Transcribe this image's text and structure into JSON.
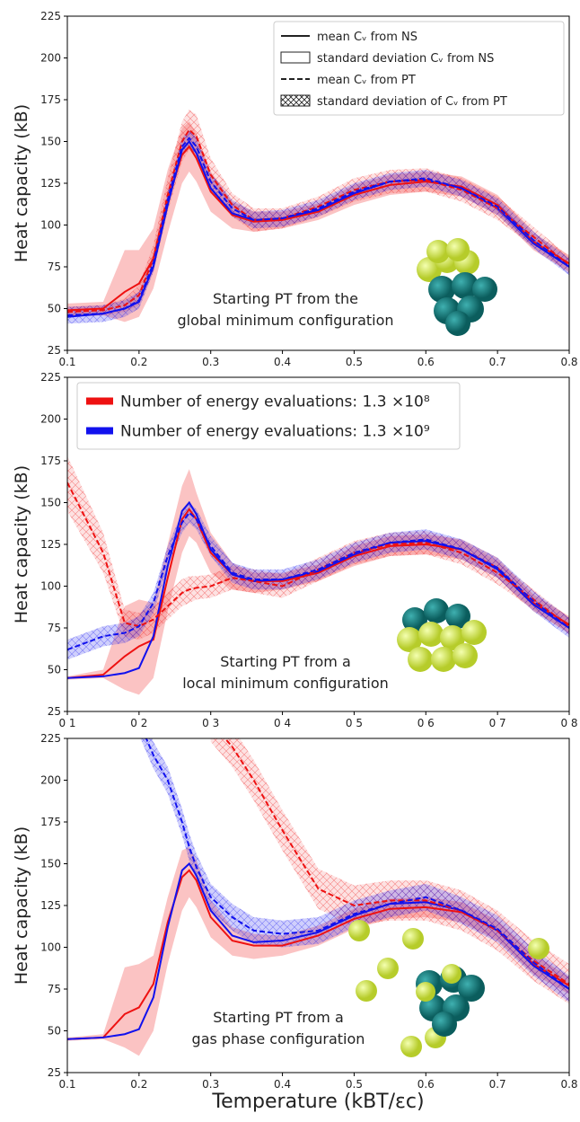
{
  "chart_data": [
    {
      "type": "line",
      "ylabel": "Heat capacity (kB)",
      "x": [
        0.1,
        0.15,
        0.18,
        0.2,
        0.22,
        0.24,
        0.26,
        0.27,
        0.28,
        0.3,
        0.33,
        0.36,
        0.4,
        0.45,
        0.5,
        0.55,
        0.6,
        0.65,
        0.7,
        0.75,
        0.8
      ],
      "xlim": [
        0.1,
        0.8
      ],
      "xticks": [
        0.1,
        0.2,
        0.3,
        0.4,
        0.5,
        0.6,
        0.7,
        0.8
      ],
      "ylim": [
        25,
        225
      ],
      "yticks": [
        25,
        50,
        75,
        100,
        125,
        150,
        175,
        200,
        225
      ],
      "legend": [
        {
          "label": "mean Cᵥ from NS",
          "style": "solid-line"
        },
        {
          "label": "standard deviation Cᵥ from NS",
          "style": "box"
        },
        {
          "label": "mean Cᵥ from PT",
          "style": "dashed-line"
        },
        {
          "label": "standard deviation of Cᵥ from PT",
          "style": "hatch-box"
        }
      ],
      "annotation": [
        "Starting PT from the",
        "global minimum configuration"
      ],
      "series": [
        {
          "color": "#ee1111",
          "style": "solid",
          "band_style": "fill",
          "values": [
            49,
            50,
            60,
            65,
            80,
            115,
            142,
            147,
            140,
            120,
            106,
            102,
            103,
            108,
            118,
            124,
            126,
            123,
            112,
            90,
            77
          ],
          "band_lower": [
            45,
            46,
            42,
            45,
            62,
            95,
            125,
            132,
            126,
            108,
            98,
            96,
            98,
            103,
            112,
            118,
            120,
            117,
            106,
            85,
            72
          ],
          "band_upper": [
            53,
            54,
            85,
            85,
            98,
            133,
            158,
            162,
            155,
            132,
            114,
            108,
            108,
            113,
            124,
            130,
            132,
            129,
            118,
            95,
            82
          ]
        },
        {
          "color": "#1111ee",
          "style": "solid",
          "values": [
            45,
            47,
            50,
            54,
            75,
            112,
            145,
            150,
            143,
            122,
            107,
            103,
            104,
            109,
            119,
            126,
            127,
            122,
            110,
            89,
            75
          ]
        },
        {
          "color": "#ee1111",
          "style": "dashed",
          "band_style": "hatch",
          "values": [
            48,
            49,
            52,
            58,
            80,
            118,
            150,
            157,
            153,
            130,
            112,
            103,
            104,
            111,
            121,
            126,
            127,
            121,
            110,
            93,
            76
          ],
          "band_lower": [
            45,
            46,
            48,
            52,
            72,
            108,
            138,
            145,
            140,
            120,
            105,
            96,
            98,
            105,
            114,
            119,
            120,
            114,
            103,
            87,
            71
          ],
          "band_upper": [
            51,
            52,
            56,
            64,
            88,
            128,
            162,
            169,
            166,
            140,
            119,
            110,
            110,
            117,
            128,
            133,
            134,
            128,
            117,
            99,
            81
          ]
        },
        {
          "color": "#1111ee",
          "style": "dashed",
          "band_style": "hatch",
          "values": [
            46,
            47,
            50,
            55,
            77,
            115,
            147,
            152,
            147,
            126,
            110,
            103,
            104,
            110,
            120,
            126,
            128,
            122,
            111,
            91,
            75
          ],
          "band_lower": [
            41,
            42,
            45,
            50,
            72,
            110,
            142,
            147,
            142,
            121,
            105,
            98,
            99,
            105,
            115,
            121,
            123,
            117,
            106,
            86,
            70
          ],
          "band_upper": [
            51,
            52,
            55,
            60,
            82,
            120,
            152,
            157,
            152,
            131,
            115,
            108,
            109,
            115,
            125,
            131,
            133,
            127,
            116,
            96,
            80
          ]
        }
      ]
    },
    {
      "type": "line",
      "ylabel": "Heat capacity (kB)",
      "x": [
        0.1,
        0.15,
        0.18,
        0.2,
        0.22,
        0.24,
        0.26,
        0.27,
        0.28,
        0.3,
        0.33,
        0.36,
        0.4,
        0.45,
        0.5,
        0.55,
        0.6,
        0.65,
        0.7,
        0.75,
        0.8
      ],
      "xlim": [
        0.1,
        0.8
      ],
      "xticks": [
        {
          "value": 0.1,
          "label": "0 1"
        },
        {
          "value": 0.2,
          "label": "0 2"
        },
        {
          "value": 0.3,
          "label": "0 3"
        },
        {
          "value": 0.4,
          "label": "0 4"
        },
        {
          "value": 0.5,
          "label": "0 5"
        },
        {
          "value": 0.6,
          "label": "0 6"
        },
        {
          "value": 0.7,
          "label": "0 7"
        },
        {
          "value": 0.8,
          "label": "0 8"
        }
      ],
      "ylim": [
        25,
        225
      ],
      "yticks": [
        25,
        50,
        75,
        100,
        125,
        150,
        175,
        200,
        225
      ],
      "legend": [
        {
          "label": "Number of energy evaluations: 1.3 ×10⁸",
          "color": "#ee1111"
        },
        {
          "label": "Number of energy evaluations: 1.3 ×10⁹",
          "color": "#1111ee"
        }
      ],
      "annotation": [
        "Starting PT from a",
        "local minimum configuration"
      ],
      "series": [
        {
          "color": "#ee1111",
          "style": "solid",
          "band_style": "fill",
          "values": [
            45,
            47,
            58,
            64,
            68,
            105,
            140,
            146,
            140,
            120,
            107,
            103,
            103,
            108,
            118,
            124,
            125,
            122,
            111,
            90,
            77
          ],
          "band_lower": [
            44,
            45,
            38,
            35,
            45,
            85,
            120,
            130,
            126,
            108,
            98,
            96,
            98,
            103,
            112,
            118,
            119,
            116,
            105,
            85,
            72
          ],
          "band_upper": [
            46,
            50,
            88,
            92,
            90,
            125,
            160,
            170,
            156,
            132,
            114,
            108,
            108,
            113,
            124,
            130,
            131,
            128,
            117,
            95,
            82
          ]
        },
        {
          "color": "#1111ee",
          "style": "solid",
          "values": [
            45,
            46,
            48,
            51,
            70,
            112,
            145,
            150,
            143,
            122,
            107,
            103,
            104,
            109,
            119,
            126,
            127,
            122,
            110,
            89,
            75
          ]
        },
        {
          "color": "#ee1111",
          "style": "dashed",
          "band_style": "hatch",
          "values": [
            162,
            120,
            78,
            76,
            80,
            88,
            96,
            98,
            99,
            100,
            105,
            103,
            100,
            110,
            120,
            125,
            126,
            120,
            108,
            92,
            76
          ],
          "band_lower": [
            145,
            108,
            70,
            68,
            72,
            80,
            88,
            90,
            92,
            93,
            98,
            96,
            93,
            103,
            113,
            118,
            119,
            113,
            101,
            86,
            71
          ],
          "band_upper": [
            178,
            132,
            86,
            84,
            88,
            96,
            104,
            106,
            106,
            107,
            112,
            110,
            107,
            117,
            127,
            132,
            133,
            127,
            115,
            98,
            81
          ]
        },
        {
          "color": "#1111ee",
          "style": "dashed",
          "band_style": "hatch",
          "values": [
            62,
            70,
            72,
            76,
            90,
            118,
            138,
            144,
            140,
            124,
            108,
            104,
            104,
            110,
            120,
            126,
            128,
            122,
            111,
            91,
            75
          ],
          "band_lower": [
            56,
            64,
            66,
            70,
            84,
            112,
            132,
            138,
            134,
            118,
            102,
            98,
            98,
            104,
            114,
            120,
            122,
            116,
            105,
            85,
            69
          ],
          "band_upper": [
            68,
            76,
            78,
            82,
            96,
            124,
            144,
            150,
            146,
            130,
            114,
            110,
            110,
            116,
            126,
            132,
            134,
            128,
            117,
            97,
            81
          ]
        }
      ]
    },
    {
      "type": "line",
      "ylabel": "Heat capacity (kB)",
      "xlabel": "Temperature (kBT/εc)",
      "x": [
        0.1,
        0.15,
        0.18,
        0.2,
        0.22,
        0.24,
        0.26,
        0.27,
        0.28,
        0.3,
        0.33,
        0.36,
        0.4,
        0.45,
        0.5,
        0.55,
        0.6,
        0.65,
        0.7,
        0.75,
        0.8
      ],
      "xlim": [
        0.1,
        0.8
      ],
      "xticks": [
        0.1,
        0.2,
        0.3,
        0.4,
        0.5,
        0.6,
        0.7,
        0.8
      ],
      "ylim": [
        25,
        225
      ],
      "yticks": [
        25,
        50,
        75,
        100,
        125,
        150,
        175,
        200,
        225
      ],
      "annotation": [
        "Starting PT from a",
        "gas phase configuration"
      ],
      "series": [
        {
          "color": "#ee1111",
          "style": "solid",
          "band_style": "fill",
          "values": [
            45,
            46,
            60,
            64,
            78,
            115,
            142,
            146,
            140,
            118,
            104,
            101,
            101,
            107,
            117,
            123,
            124,
            121,
            110,
            90,
            77
          ],
          "band_lower": [
            44,
            45,
            40,
            35,
            50,
            90,
            122,
            130,
            124,
            106,
            95,
            93,
            95,
            101,
            111,
            117,
            118,
            115,
            104,
            84,
            72
          ],
          "band_upper": [
            46,
            48,
            88,
            90,
            95,
            130,
            158,
            160,
            152,
            128,
            112,
            108,
            107,
            113,
            123,
            129,
            130,
            127,
            116,
            96,
            82
          ]
        },
        {
          "color": "#1111ee",
          "style": "solid",
          "values": [
            45,
            46,
            48,
            51,
            70,
            112,
            146,
            150,
            143,
            122,
            107,
            103,
            104,
            109,
            119,
            126,
            127,
            122,
            110,
            89,
            75
          ]
        },
        {
          "color": "#ee1111",
          "style": "dashed",
          "band_style": "hatch",
          "values": [
            null,
            null,
            null,
            null,
            null,
            null,
            null,
            null,
            null,
            235,
            220,
            200,
            170,
            135,
            125,
            128,
            128,
            122,
            110,
            92,
            78
          ],
          "band_lower": [
            null,
            null,
            null,
            null,
            null,
            null,
            null,
            null,
            null,
            223,
            208,
            188,
            158,
            123,
            113,
            116,
            116,
            110,
            98,
            80,
            66
          ],
          "band_upper": [
            null,
            null,
            null,
            null,
            null,
            null,
            null,
            null,
            null,
            247,
            232,
            212,
            182,
            147,
            137,
            140,
            140,
            134,
            122,
            104,
            90
          ]
        },
        {
          "color": "#1111ee",
          "style": "dashed",
          "band_style": "hatch",
          "values": [
            null,
            null,
            null,
            235,
            215,
            200,
            175,
            160,
            148,
            130,
            118,
            110,
            108,
            110,
            120,
            126,
            130,
            122,
            111,
            91,
            75
          ],
          "band_lower": [
            null,
            null,
            null,
            227,
            207,
            192,
            167,
            152,
            140,
            122,
            110,
            102,
            100,
            102,
            112,
            118,
            122,
            114,
            103,
            83,
            67
          ],
          "band_upper": [
            null,
            null,
            null,
            243,
            223,
            208,
            183,
            168,
            156,
            138,
            126,
            118,
            116,
            118,
            128,
            134,
            138,
            130,
            119,
            99,
            83
          ]
        }
      ]
    }
  ]
}
